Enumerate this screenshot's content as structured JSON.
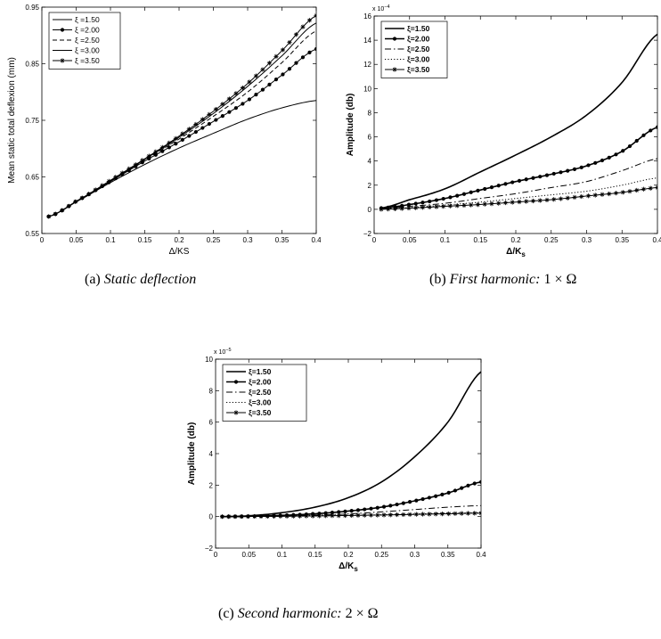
{
  "captions": {
    "a_label": "(a)",
    "a_text": "Static deflection",
    "b_label": "(b)",
    "b_text": "First harmonic:",
    "b_math": "1 × Ω",
    "c_label": "(c)",
    "c_text": "Second harmonic:",
    "c_math": "2 × Ω"
  },
  "chart_data": [
    {
      "id": "a",
      "type": "line",
      "xlabel": "Δ/KS",
      "ylabel": "Mean static total deflexion (mm)",
      "xlim": [
        0,
        0.4
      ],
      "ylim": [
        0.55,
        0.95
      ],
      "xticks": [
        "0",
        "0.05",
        "0.1",
        "0.15",
        "0.2",
        "0.25",
        "0.3",
        "0.35",
        "0.4"
      ],
      "yticks": [
        "0.55",
        "0.65",
        "0.75",
        "0.85",
        "0.95"
      ],
      "exponent": "",
      "legend_position": "top-left",
      "x": [
        0.01,
        0.05,
        0.1,
        0.15,
        0.2,
        0.25,
        0.3,
        0.35,
        0.4
      ],
      "series": [
        {
          "name": "ξ =1.50",
          "style": "solid",
          "marker": "none",
          "values": [
            0.58,
            0.606,
            0.64,
            0.672,
            0.701,
            0.727,
            0.752,
            0.772,
            0.785
          ]
        },
        {
          "name": "ξ =2.00",
          "style": "solid",
          "marker": "dot",
          "values": [
            0.58,
            0.607,
            0.642,
            0.678,
            0.712,
            0.748,
            0.785,
            0.83,
            0.876
          ]
        },
        {
          "name": "ξ =2.50",
          "style": "dashed",
          "marker": "none",
          "values": [
            0.58,
            0.607,
            0.643,
            0.68,
            0.717,
            0.757,
            0.8,
            0.852,
            0.908
          ]
        },
        {
          "name": "ξ =3.00",
          "style": "solid",
          "marker": "none",
          "values": [
            0.58,
            0.607,
            0.643,
            0.681,
            0.72,
            0.762,
            0.81,
            0.864,
            0.922
          ]
        },
        {
          "name": "ξ =3.50",
          "style": "solid",
          "marker": "star",
          "values": [
            0.58,
            0.607,
            0.644,
            0.682,
            0.722,
            0.766,
            0.815,
            0.873,
            0.935
          ]
        }
      ]
    },
    {
      "id": "b",
      "type": "line",
      "xlabel": "Δ/K",
      "xlabel_sub": "s",
      "ylabel": "Amplitude (db)",
      "xlim": [
        0,
        0.4
      ],
      "ylim": [
        -2,
        16
      ],
      "xticks": [
        "0",
        "0.05",
        "0.1",
        "0.15",
        "0.2",
        "0.25",
        "0.3",
        "0.35",
        "0.4"
      ],
      "yticks": [
        "−2",
        "0",
        "2",
        "4",
        "6",
        "8",
        "10",
        "12",
        "14",
        "16"
      ],
      "exponent": "x 10",
      "exponent_power": "−4",
      "legend_position": "top-left",
      "x": [
        0.01,
        0.05,
        0.1,
        0.15,
        0.2,
        0.25,
        0.3,
        0.35,
        0.4
      ],
      "series": [
        {
          "name": "ξ=1.50",
          "style": "solid-bold",
          "marker": "none",
          "values": [
            0.1,
            0.8,
            1.7,
            3.1,
            4.5,
            6.0,
            7.8,
            10.5,
            14.5
          ]
        },
        {
          "name": "ξ=2.00",
          "style": "solid-bold",
          "marker": "dot",
          "values": [
            0.1,
            0.4,
            0.9,
            1.6,
            2.3,
            2.9,
            3.6,
            4.8,
            6.8
          ]
        },
        {
          "name": "ξ=2.50",
          "style": "dashdot",
          "marker": "none",
          "values": [
            0.05,
            0.25,
            0.5,
            0.9,
            1.3,
            1.8,
            2.3,
            3.2,
            4.2
          ]
        },
        {
          "name": "ξ=3.00",
          "style": "dotted",
          "marker": "none",
          "values": [
            0.03,
            0.15,
            0.35,
            0.6,
            0.9,
            1.2,
            1.5,
            2.0,
            2.6
          ]
        },
        {
          "name": "ξ=3.50",
          "style": "solid",
          "marker": "star",
          "values": [
            0.0,
            0.1,
            0.25,
            0.4,
            0.6,
            0.8,
            1.1,
            1.4,
            1.8
          ]
        }
      ]
    },
    {
      "id": "c",
      "type": "line",
      "xlabel": "Δ/K",
      "xlabel_sub": "s",
      "ylabel": "Amplitude (db)",
      "xlim": [
        0,
        0.4
      ],
      "ylim": [
        -2,
        10
      ],
      "xticks": [
        "0",
        "0.05",
        "0.1",
        "0.15",
        "0.2",
        "0.25",
        "0.3",
        "0.35",
        "0.4"
      ],
      "yticks": [
        "−2",
        "0",
        "2",
        "4",
        "6",
        "8",
        "10"
      ],
      "exponent": "x 10",
      "exponent_power": "−5",
      "legend_position": "top-left",
      "x": [
        0.01,
        0.05,
        0.1,
        0.15,
        0.2,
        0.25,
        0.3,
        0.35,
        0.4
      ],
      "series": [
        {
          "name": "ξ=1.50",
          "style": "solid-bold",
          "marker": "none",
          "values": [
            0.0,
            0.05,
            0.25,
            0.6,
            1.2,
            2.2,
            3.8,
            6.0,
            9.2
          ]
        },
        {
          "name": "ξ=2.00",
          "style": "solid-bold",
          "marker": "dot",
          "values": [
            0.0,
            0.02,
            0.08,
            0.18,
            0.35,
            0.6,
            1.0,
            1.5,
            2.2
          ]
        },
        {
          "name": "ξ=2.50",
          "style": "dashdot",
          "marker": "none",
          "values": [
            0.0,
            0.01,
            0.04,
            0.09,
            0.17,
            0.3,
            0.45,
            0.6,
            0.7
          ]
        },
        {
          "name": "ξ=3.00",
          "style": "dotted",
          "marker": "none",
          "values": [
            0.0,
            0.01,
            0.02,
            0.05,
            0.08,
            0.12,
            0.17,
            0.22,
            0.25
          ]
        },
        {
          "name": "ξ=3.50",
          "style": "solid",
          "marker": "star",
          "values": [
            0.0,
            0.01,
            0.02,
            0.04,
            0.07,
            0.1,
            0.14,
            0.18,
            0.22
          ]
        }
      ]
    }
  ]
}
